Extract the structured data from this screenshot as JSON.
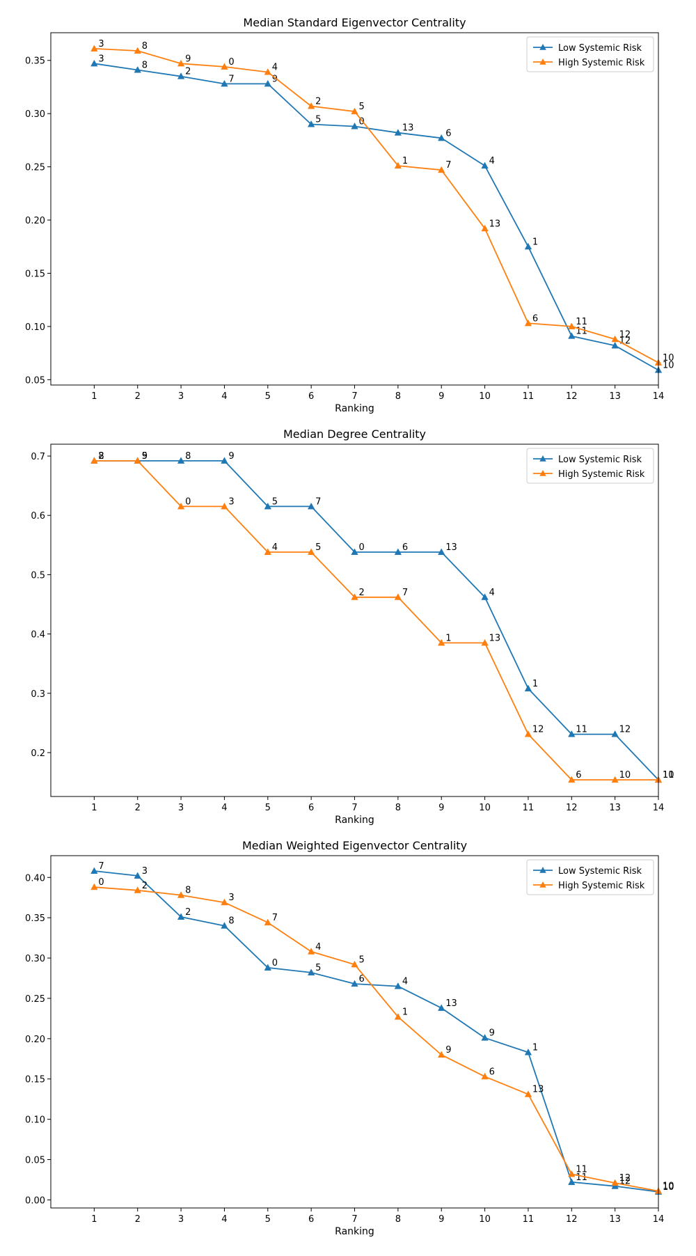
{
  "chart_data": [
    {
      "type": "line",
      "title": "Median Standard Eigenvector Centrality",
      "xlabel": "Ranking",
      "ylabel": "",
      "x": [
        1,
        2,
        3,
        4,
        5,
        6,
        7,
        8,
        9,
        10,
        11,
        12,
        13,
        14
      ],
      "xlim": [
        0,
        14
      ],
      "ylim": [
        0.045,
        0.376
      ],
      "yticks": [
        0.05,
        0.1,
        0.15,
        0.2,
        0.25,
        0.3,
        0.35
      ],
      "ytick_labels": [
        "0.05",
        "0.10",
        "0.15",
        "0.20",
        "0.25",
        "0.30",
        "0.35"
      ],
      "legend_position": "top-right",
      "marker": "triangle",
      "series": [
        {
          "name": "Low Systemic Risk",
          "color": "#1f77b4",
          "values": [
            0.347,
            0.341,
            0.335,
            0.328,
            0.328,
            0.29,
            0.288,
            0.282,
            0.277,
            0.251,
            0.175,
            0.091,
            0.082,
            0.059
          ],
          "point_labels": [
            "3",
            "8",
            "2",
            "7",
            "9",
            "5",
            "0",
            "13",
            "6",
            "4",
            "1",
            "11",
            "12",
            "10"
          ]
        },
        {
          "name": "High Systemic Risk",
          "color": "#ff7f0e",
          "values": [
            0.361,
            0.359,
            0.347,
            0.344,
            0.339,
            0.307,
            0.302,
            0.251,
            0.247,
            0.192,
            0.103,
            0.1,
            0.088,
            0.066
          ],
          "point_labels": [
            "3",
            "8",
            "9",
            "0",
            "4",
            "2",
            "5",
            "1",
            "7",
            "13",
            "6",
            "11",
            "12",
            "10"
          ]
        }
      ]
    },
    {
      "type": "line",
      "title": "Median Degree Centrality",
      "xlabel": "Ranking",
      "ylabel": "",
      "x": [
        1,
        2,
        3,
        4,
        5,
        6,
        7,
        8,
        9,
        10,
        11,
        12,
        13,
        14
      ],
      "xlim": [
        0,
        14
      ],
      "ylim": [
        0.126,
        0.72
      ],
      "yticks": [
        0.2,
        0.3,
        0.4,
        0.5,
        0.6,
        0.7
      ],
      "ytick_labels": [
        "0.2",
        "0.3",
        "0.4",
        "0.5",
        "0.6",
        "0.7"
      ],
      "legend_position": "top-right",
      "marker": "triangle",
      "series": [
        {
          "name": "Low Systemic Risk",
          "color": "#1f77b4",
          "values": [
            0.692,
            0.692,
            0.692,
            0.692,
            0.615,
            0.615,
            0.538,
            0.538,
            0.538,
            0.462,
            0.308,
            0.231,
            0.231,
            0.154
          ],
          "point_labels": [
            "2",
            "5",
            "8",
            "9",
            "5",
            "7",
            "0",
            "6",
            "13",
            "4",
            "1",
            "11",
            "12",
            "10"
          ]
        },
        {
          "name": "High Systemic Risk",
          "color": "#ff7f0e",
          "values": [
            0.692,
            0.692,
            0.615,
            0.615,
            0.538,
            0.538,
            0.462,
            0.462,
            0.385,
            0.385,
            0.231,
            0.154,
            0.154,
            0.154
          ],
          "point_labels": [
            "8",
            "9",
            "0",
            "3",
            "4",
            "5",
            "2",
            "7",
            "1",
            "13",
            "12",
            "6",
            "10",
            "11"
          ]
        }
      ]
    },
    {
      "type": "line",
      "title": "Median Weighted Eigenvector Centrality",
      "xlabel": "Ranking",
      "ylabel": "",
      "x": [
        1,
        2,
        3,
        4,
        5,
        6,
        7,
        8,
        9,
        10,
        11,
        12,
        13,
        14
      ],
      "xlim": [
        0,
        14
      ],
      "ylim": [
        -0.01,
        0.427
      ],
      "yticks": [
        0.0,
        0.05,
        0.1,
        0.15,
        0.2,
        0.25,
        0.3,
        0.35,
        0.4
      ],
      "ytick_labels": [
        "0.00",
        "0.05",
        "0.10",
        "0.15",
        "0.20",
        "0.25",
        "0.30",
        "0.35",
        "0.40"
      ],
      "legend_position": "top-right",
      "marker": "triangle",
      "series": [
        {
          "name": "Low Systemic Risk",
          "color": "#1f77b4",
          "values": [
            0.408,
            0.402,
            0.351,
            0.34,
            0.288,
            0.282,
            0.268,
            0.265,
            0.238,
            0.201,
            0.183,
            0.022,
            0.017,
            0.01
          ],
          "point_labels": [
            "7",
            "3",
            "2",
            "8",
            "0",
            "5",
            "6",
            "4",
            "13",
            "9",
            "1",
            "11",
            "12",
            "10"
          ]
        },
        {
          "name": "High Systemic Risk",
          "color": "#ff7f0e",
          "values": [
            0.388,
            0.384,
            0.378,
            0.369,
            0.344,
            0.308,
            0.292,
            0.227,
            0.18,
            0.153,
            0.131,
            0.032,
            0.021,
            0.011
          ],
          "point_labels": [
            "0",
            "2",
            "8",
            "3",
            "7",
            "4",
            "5",
            "1",
            "9",
            "6",
            "13",
            "11",
            "12",
            "10"
          ]
        }
      ]
    }
  ]
}
